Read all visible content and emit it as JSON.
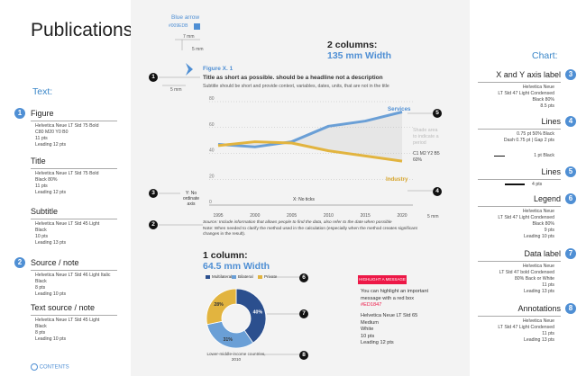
{
  "page_title": "Publications",
  "text_section": "Text:",
  "chart_section": "Chart:",
  "contents": "CONTENTS",
  "left_specs": [
    {
      "num": "1",
      "label": "Figure",
      "lines": [
        "Helvetica Neue LT Std 75 Bold",
        "C80 M20 Y0 B0",
        "11 pts",
        "Leading 12 pts"
      ]
    },
    {
      "num": "",
      "label": "Title",
      "lines": [
        "Helvetica Neue LT Std 75 Bold",
        "Black 80%",
        "11 pts",
        "Leading 12 pts"
      ]
    },
    {
      "num": "",
      "label": "Subtitle",
      "lines": [
        "Helvetica Neue LT Std 45 Light",
        "Black",
        "10 pts",
        "Leading 13 pts"
      ]
    },
    {
      "num": "2",
      "label": "Source / note",
      "lines": [
        "Helvetica Neue LT Std 46 Light Italic",
        "Black",
        "8 pts",
        "Leading 10 pts"
      ]
    },
    {
      "num": "",
      "label": "Text source / note",
      "lines": [
        "Helvetica Neue LT Std 45 Light",
        "Black",
        "8 pts",
        "Leading 10 pts"
      ]
    }
  ],
  "right_specs": [
    {
      "num": "3",
      "label": "X and Y axis label",
      "lines": [
        "Helvetica Neue",
        "LT Std 47 Light Condensed",
        "Black 80%",
        "8.5 pts"
      ]
    },
    {
      "num": "4",
      "label": "Lines",
      "lines": [
        "0.75 pt 50% Black",
        "Dash 0.75 pt | Gap 2 pts"
      ],
      "extra": "1 pt Black"
    },
    {
      "num": "5",
      "label": "Lines",
      "lines": [],
      "extra": "4 pts"
    },
    {
      "num": "6",
      "label": "Legend",
      "lines": [
        "Helvetica Neue",
        "LT Std 47 Light Condensed",
        "Black 80%",
        "9 pts",
        "Leading 10 pts"
      ]
    },
    {
      "num": "7",
      "label": "Data label",
      "lines": [
        "Helvetica Neue",
        "LT Std 47 bold Condensed",
        "80% Back or White",
        "11 pts",
        "Leading 13 pts"
      ]
    },
    {
      "num": "8",
      "label": "Annotations",
      "lines": [
        "Helvetica Neue",
        "LT Std 47 Light Condensed",
        "11 pts",
        "Leading 13 pts"
      ]
    }
  ],
  "blue_arrow": {
    "label": "Blue arrow",
    "code": "#009EDB",
    "dim_7mm": "7 mm",
    "dim_5mm_a": "5 mm",
    "dim_5mm_b": "5 mm",
    "dim_5mm_c": "5 mm"
  },
  "two_col": {
    "title": "2 columns:",
    "width": "135 mm Width"
  },
  "figure": {
    "label": "Figure X. 1",
    "title": "Title as short as possible. should be a headline not a description",
    "subtitle": "Subtitle should be short and provide context, variables, dates, units, that are not in the title",
    "source": "Source: Include information that allows people to find the data, also refer to the date when possible",
    "note": "Note: When needed to clarify the method used in the calculation (especially when the method creates significant changes in the result).",
    "shade_note": "Shade area to indicate a period",
    "color_note_1": "C1 M2 Y2 B5",
    "color_note_2": "60%",
    "y_note": "Y: No ordinate axis",
    "x_note": "X: No ticks"
  },
  "one_col": {
    "title": "1 column:",
    "width": "64.5 mm Width"
  },
  "highlight": {
    "box": "HIGHLIGHT A MESSAGE",
    "text_1": "You can highlight an important message with a red box",
    "code": "#ED1847",
    "font_1": "Helvetica Neue LT Std 65",
    "font_2": "Medium",
    "font_3": "White",
    "font_4": "10 pts",
    "font_5": "Leading 12 pts"
  },
  "chart_data": [
    {
      "type": "line",
      "x": [
        1995,
        2000,
        2005,
        2010,
        2015,
        2020
      ],
      "series": [
        {
          "name": "Services",
          "color": "#6a9fd6",
          "values": [
            47,
            45,
            49,
            61,
            65,
            72
          ]
        },
        {
          "name": "Industry",
          "color": "#e2b43f",
          "values": [
            46,
            49,
            48,
            42,
            38,
            34
          ]
        }
      ],
      "yticks": [
        0,
        20,
        40,
        60,
        80
      ],
      "ylim": [
        0,
        80
      ],
      "xlabel": "",
      "ylabel": ""
    },
    {
      "type": "pie",
      "title": "Lower-middle-income countries, 2010",
      "legend": [
        "Multilateral",
        "Bilateral",
        "Private"
      ],
      "values": [
        40,
        31,
        28
      ],
      "labels": [
        "40%",
        "31%",
        "28%"
      ],
      "colors": [
        "#2b4f8e",
        "#6a9fd6",
        "#e2b43f"
      ]
    }
  ]
}
